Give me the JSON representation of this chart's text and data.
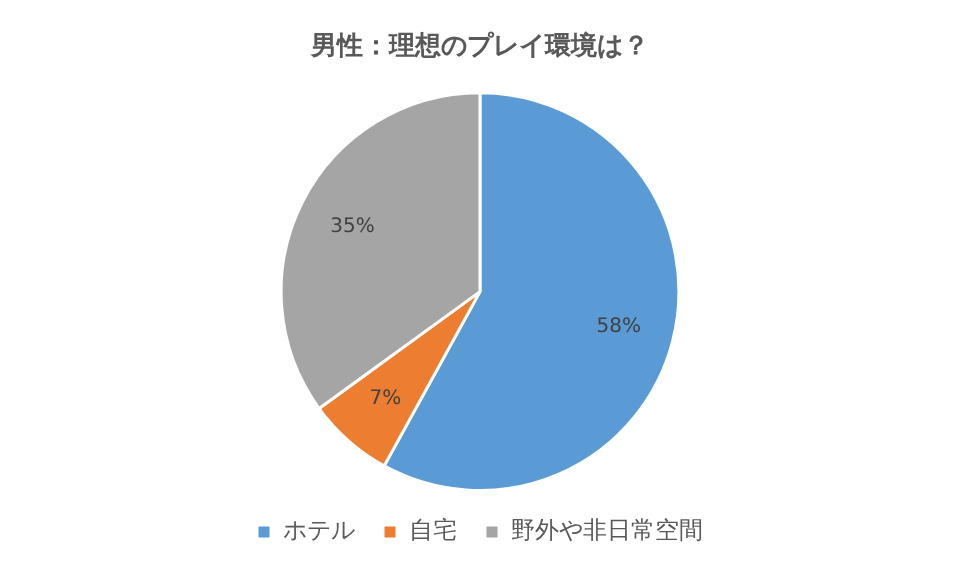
{
  "chart_data": {
    "type": "pie",
    "title": "男性：理想のプレイ環境は？",
    "categories": [
      "ホテル",
      "自宅",
      "野外や非日常空間"
    ],
    "values": [
      58,
      7,
      35
    ],
    "colors": [
      "#5b9bd5",
      "#ed7d31",
      "#a5a5a5"
    ],
    "value_labels": [
      "58%",
      "7%",
      "35%"
    ],
    "legend": "bottom"
  }
}
